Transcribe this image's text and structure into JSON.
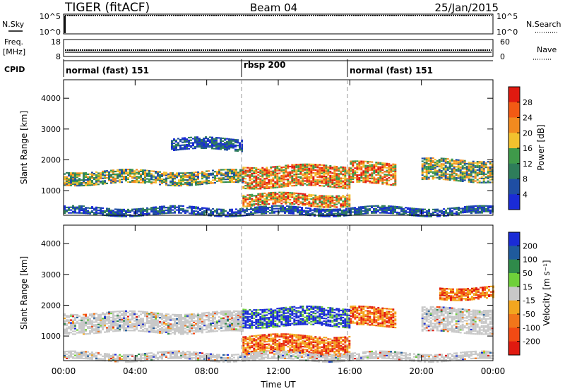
{
  "header": {
    "title": "TIGER (fitACF)",
    "beam": "Beam 04",
    "date": "25/Jan/2015"
  },
  "panels": {
    "nsky": {
      "label": "N.Sky",
      "ticks": [
        "10^5",
        "10^0"
      ],
      "right_label": "N.Search",
      "right_ticks": [
        "10^5",
        "10^0"
      ]
    },
    "freq": {
      "label_top": "Freq.",
      "label_unit": "[MHz]",
      "ticks": [
        "18",
        "8"
      ],
      "right_label": "Nave",
      "right_ticks": [
        "60",
        "0"
      ]
    },
    "cpid": {
      "label": "CPID",
      "segments": [
        "normal (fast) 151",
        "rbsp 200",
        "normal (fast) 151"
      ]
    }
  },
  "colors": {
    "power": [
      "#1a2bd6",
      "#1f4ea3",
      "#2e7d5a",
      "#3f9a4a",
      "#f2c12e",
      "#f28a1f",
      "#f25a14",
      "#e01a10"
    ],
    "velocity": [
      "#1a2bd6",
      "#1f5a9c",
      "#2f8a4a",
      "#6fd03a",
      "#c8c8c8",
      "#f2a61f",
      "#f2761a",
      "#f24a14",
      "#e01a10"
    ]
  },
  "chart_data": [
    {
      "type": "heatmap",
      "name_printed": "Power",
      "xlabel": "Time UT",
      "ylabel": "Slant Range [km]",
      "xlim": [
        "00:00",
        "24:00"
      ],
      "ylim": [
        200,
        4600
      ],
      "xticks": [
        "00:00",
        "04:00",
        "08:00",
        "12:00",
        "16:00",
        "20:00",
        "00:00"
      ],
      "yticks": [
        "1000",
        "2000",
        "3000",
        "4000"
      ],
      "colorbar": {
        "label": "Power [dB]",
        "ticks": [
          "4",
          "8",
          "12",
          "16",
          "20",
          "24",
          "28"
        ]
      },
      "mode_change_times_hours": [
        10,
        16
      ],
      "echo_bands": [
        {
          "start_h": 0,
          "end_h": 10,
          "range_km": [
            1200,
            1650
          ],
          "level": "mid"
        },
        {
          "start_h": 10,
          "end_h": 16,
          "range_km": [
            1100,
            1800
          ],
          "level": "high"
        },
        {
          "start_h": 10,
          "end_h": 16,
          "range_km": [
            500,
            900
          ],
          "level": "high"
        },
        {
          "start_h": 16,
          "end_h": 18.5,
          "range_km": [
            1200,
            1900
          ],
          "level": "high"
        },
        {
          "start_h": 20,
          "end_h": 24,
          "range_km": [
            1300,
            2000
          ],
          "level": "mid"
        },
        {
          "start_h": 6,
          "end_h": 10,
          "range_km": [
            2300,
            2700
          ],
          "level": "low"
        },
        {
          "start_h": 0,
          "end_h": 24,
          "range_km": [
            200,
            450
          ],
          "level": "low"
        }
      ]
    },
    {
      "type": "heatmap",
      "name_printed": "Velocity",
      "xlabel": "Time UT",
      "ylabel": "Slant Range [km]",
      "xlim": [
        "00:00",
        "24:00"
      ],
      "ylim": [
        200,
        4600
      ],
      "xticks": [
        "00:00",
        "04:00",
        "08:00",
        "12:00",
        "16:00",
        "20:00",
        "00:00"
      ],
      "yticks": [
        "1000",
        "2000",
        "3000",
        "4000"
      ],
      "colorbar": {
        "label": "Velocity [m s⁻¹]",
        "ticks": [
          "200",
          "100",
          "50",
          "15",
          "-15",
          "-50",
          "-100",
          "-200"
        ]
      },
      "mode_change_times_hours": [
        10,
        16
      ],
      "echo_bands": [
        {
          "start_h": 0,
          "end_h": 10,
          "range_km": [
            1100,
            1750
          ],
          "level": "ground"
        },
        {
          "start_h": 10,
          "end_h": 16,
          "range_km": [
            1300,
            1900
          ],
          "level": "toward"
        },
        {
          "start_h": 10,
          "end_h": 16,
          "range_km": [
            400,
            1000
          ],
          "level": "away"
        },
        {
          "start_h": 16,
          "end_h": 18.5,
          "range_km": [
            1300,
            1900
          ],
          "level": "away"
        },
        {
          "start_h": 20,
          "end_h": 24,
          "range_km": [
            1100,
            1900
          ],
          "level": "ground"
        },
        {
          "start_h": 21,
          "end_h": 24,
          "range_km": [
            2200,
            2600
          ],
          "level": "away"
        },
        {
          "start_h": 0,
          "end_h": 24,
          "range_km": [
            200,
            450
          ],
          "level": "ground"
        }
      ]
    }
  ]
}
